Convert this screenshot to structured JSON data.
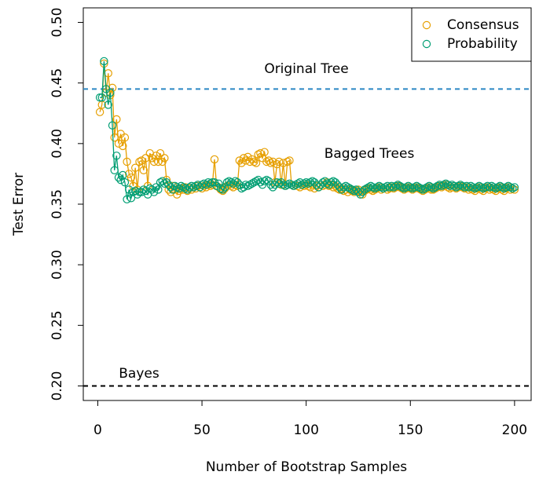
{
  "chart_data": {
    "type": "line",
    "xlabel": "Number of Bootstrap Samples",
    "ylabel": "Test Error",
    "annotations": [
      "Original Tree",
      "Bagged Trees",
      "Bayes"
    ],
    "reference_lines": [
      {
        "value": 0.445,
        "color": "#2b86c4"
      },
      {
        "value": 0.2,
        "color": "#000000"
      }
    ],
    "legend": "top-right",
    "xlim": [
      -6.96,
      207.96
    ],
    "xticks": [
      0,
      50,
      100,
      150,
      200
    ],
    "ylim": [
      0.188,
      0.512
    ],
    "yticks": [
      {
        "value": 0.2,
        "label": "0.20"
      },
      0.25,
      {
        "value": 0.3,
        "label": "0.30"
      },
      0.35,
      {
        "value": 0.4,
        "label": "0.40"
      },
      0.45,
      {
        "value": 0.5,
        "label": "0.50"
      }
    ],
    "x": [
      1,
      2,
      3,
      4,
      5,
      6,
      7,
      8,
      9,
      10,
      11,
      12,
      13,
      14,
      15,
      16,
      17,
      18,
      19,
      20,
      21,
      22,
      23,
      24,
      25,
      26,
      27,
      28,
      29,
      30,
      31,
      32,
      33,
      34,
      35,
      36,
      37,
      38,
      39,
      40,
      41,
      42,
      43,
      44,
      45,
      46,
      47,
      48,
      49,
      50,
      51,
      52,
      53,
      54,
      55,
      56,
      57,
      58,
      59,
      60,
      61,
      62,
      63,
      64,
      65,
      66,
      67,
      68,
      69,
      70,
      71,
      72,
      73,
      74,
      75,
      76,
      77,
      78,
      79,
      80,
      81,
      82,
      83,
      84,
      85,
      86,
      87,
      88,
      89,
      90,
      91,
      92,
      93,
      94,
      95,
      96,
      97,
      98,
      99,
      100,
      101,
      102,
      103,
      104,
      105,
      106,
      107,
      108,
      109,
      110,
      111,
      112,
      113,
      114,
      115,
      116,
      117,
      118,
      119,
      120,
      121,
      122,
      123,
      124,
      125,
      126,
      127,
      128,
      129,
      130,
      131,
      132,
      133,
      134,
      135,
      136,
      137,
      138,
      139,
      140,
      141,
      142,
      143,
      144,
      145,
      146,
      147,
      148,
      149,
      150,
      151,
      152,
      153,
      154,
      155,
      156,
      157,
      158,
      159,
      160,
      161,
      162,
      163,
      164,
      165,
      166,
      167,
      168,
      169,
      170,
      171,
      172,
      173,
      174,
      175,
      176,
      177,
      178,
      179,
      180,
      181,
      182,
      183,
      184,
      185,
      186,
      187,
      188,
      189,
      190,
      191,
      192,
      193,
      194,
      195,
      196,
      197,
      198,
      199,
      200
    ],
    "series": [
      {
        "name": "Consensus",
        "color": "#E69F00",
        "values": [
          0.426,
          0.432,
          0.466,
          0.442,
          0.458,
          0.44,
          0.446,
          0.405,
          0.42,
          0.4,
          0.408,
          0.398,
          0.405,
          0.385,
          0.375,
          0.372,
          0.365,
          0.38,
          0.362,
          0.385,
          0.386,
          0.378,
          0.388,
          0.365,
          0.392,
          0.388,
          0.385,
          0.39,
          0.385,
          0.392,
          0.385,
          0.388,
          0.37,
          0.362,
          0.36,
          0.365,
          0.362,
          0.358,
          0.361,
          0.363,
          0.362,
          0.364,
          0.361,
          0.363,
          0.362,
          0.364,
          0.363,
          0.365,
          0.364,
          0.363,
          0.365,
          0.364,
          0.366,
          0.365,
          0.366,
          0.387,
          0.365,
          0.364,
          0.362,
          0.361,
          0.363,
          0.365,
          0.366,
          0.365,
          0.364,
          0.366,
          0.365,
          0.386,
          0.384,
          0.388,
          0.386,
          0.389,
          0.385,
          0.387,
          0.385,
          0.384,
          0.391,
          0.392,
          0.388,
          0.393,
          0.385,
          0.386,
          0.384,
          0.385,
          0.368,
          0.383,
          0.385,
          0.366,
          0.384,
          0.365,
          0.385,
          0.386,
          0.366,
          0.365,
          0.366,
          0.365,
          0.364,
          0.366,
          0.365,
          0.366,
          0.365,
          0.364,
          0.366,
          0.363,
          0.365,
          0.364,
          0.366,
          0.365,
          0.366,
          0.368,
          0.365,
          0.366,
          0.364,
          0.365,
          0.363,
          0.362,
          0.363,
          0.361,
          0.362,
          0.36,
          0.362,
          0.361,
          0.36,
          0.361,
          0.362,
          0.36,
          0.358,
          0.361,
          0.362,
          0.363,
          0.362,
          0.361,
          0.362,
          0.363,
          0.364,
          0.362,
          0.363,
          0.364,
          0.362,
          0.363,
          0.364,
          0.363,
          0.364,
          0.365,
          0.364,
          0.363,
          0.362,
          0.363,
          0.364,
          0.363,
          0.362,
          0.363,
          0.364,
          0.363,
          0.362,
          0.361,
          0.362,
          0.363,
          0.364,
          0.362,
          0.362,
          0.363,
          0.364,
          0.365,
          0.364,
          0.365,
          0.366,
          0.364,
          0.363,
          0.364,
          0.365,
          0.363,
          0.364,
          0.365,
          0.364,
          0.363,
          0.364,
          0.362,
          0.363,
          0.362,
          0.361,
          0.363,
          0.364,
          0.362,
          0.361,
          0.363,
          0.364,
          0.362,
          0.363,
          0.362,
          0.361,
          0.363,
          0.364,
          0.362,
          0.361,
          0.363,
          0.364,
          0.362,
          0.363,
          0.362
        ]
      },
      {
        "name": "Probability",
        "color": "#009E73",
        "values": [
          0.438,
          0.438,
          0.468,
          0.445,
          0.432,
          0.442,
          0.415,
          0.378,
          0.39,
          0.372,
          0.37,
          0.374,
          0.368,
          0.354,
          0.362,
          0.355,
          0.36,
          0.361,
          0.358,
          0.36,
          0.36,
          0.362,
          0.361,
          0.358,
          0.363,
          0.362,
          0.36,
          0.364,
          0.362,
          0.368,
          0.369,
          0.367,
          0.368,
          0.366,
          0.364,
          0.362,
          0.365,
          0.364,
          0.363,
          0.365,
          0.364,
          0.363,
          0.362,
          0.364,
          0.365,
          0.364,
          0.365,
          0.366,
          0.364,
          0.366,
          0.367,
          0.366,
          0.368,
          0.367,
          0.368,
          0.368,
          0.365,
          0.367,
          0.363,
          0.362,
          0.364,
          0.368,
          0.369,
          0.368,
          0.367,
          0.369,
          0.368,
          0.366,
          0.363,
          0.364,
          0.366,
          0.365,
          0.366,
          0.367,
          0.368,
          0.369,
          0.37,
          0.368,
          0.366,
          0.369,
          0.37,
          0.369,
          0.366,
          0.364,
          0.366,
          0.368,
          0.367,
          0.368,
          0.366,
          0.365,
          0.366,
          0.367,
          0.366,
          0.365,
          0.366,
          0.367,
          0.368,
          0.366,
          0.367,
          0.368,
          0.367,
          0.368,
          0.369,
          0.368,
          0.366,
          0.364,
          0.366,
          0.368,
          0.369,
          0.367,
          0.366,
          0.368,
          0.369,
          0.368,
          0.366,
          0.364,
          0.362,
          0.364,
          0.365,
          0.364,
          0.363,
          0.362,
          0.361,
          0.362,
          0.36,
          0.358,
          0.36,
          0.362,
          0.363,
          0.364,
          0.365,
          0.364,
          0.363,
          0.364,
          0.365,
          0.364,
          0.363,
          0.364,
          0.365,
          0.364,
          0.365,
          0.364,
          0.365,
          0.366,
          0.365,
          0.364,
          0.363,
          0.364,
          0.365,
          0.364,
          0.363,
          0.364,
          0.365,
          0.364,
          0.363,
          0.362,
          0.363,
          0.364,
          0.365,
          0.364,
          0.363,
          0.364,
          0.365,
          0.366,
          0.365,
          0.366,
          0.367,
          0.366,
          0.365,
          0.366,
          0.365,
          0.364,
          0.365,
          0.366,
          0.365,
          0.364,
          0.365,
          0.364,
          0.365,
          0.364,
          0.363,
          0.364,
          0.365,
          0.364,
          0.363,
          0.364,
          0.365,
          0.364,
          0.365,
          0.364,
          0.363,
          0.364,
          0.365,
          0.364,
          0.363,
          0.364,
          0.365,
          0.364,
          0.363,
          0.364
        ]
      }
    ]
  }
}
